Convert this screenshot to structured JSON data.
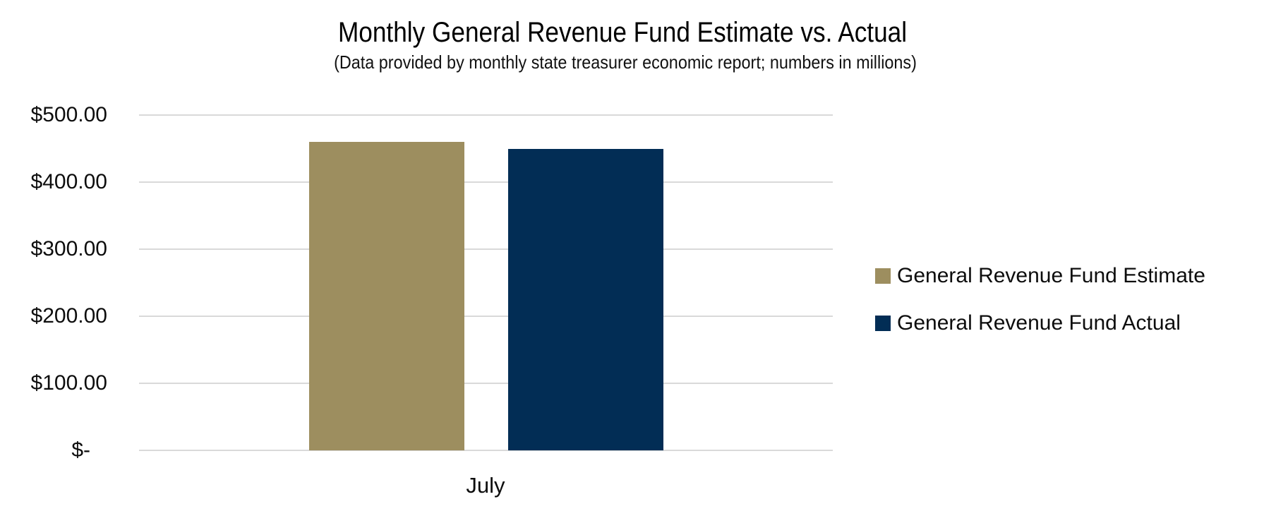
{
  "chart_data": {
    "type": "bar",
    "title": "Monthly General Revenue Fund Estimate vs. Actual",
    "subtitle": "(Data provided by monthly state treasurer economic report; numbers in millions)",
    "categories": [
      "July"
    ],
    "series": [
      {
        "name": "General Revenue Fund Estimate",
        "values": [
          460
        ],
        "color": "#9D8E5F"
      },
      {
        "name": "General Revenue Fund Actual",
        "values": [
          450
        ],
        "color": "#022D55"
      }
    ],
    "xlabel": "",
    "ylabel": "",
    "ylim": [
      0,
      500
    ],
    "y_ticks": [
      {
        "value": 500,
        "label": "$500.00"
      },
      {
        "value": 400,
        "label": "$400.00"
      },
      {
        "value": 300,
        "label": "$300.00"
      },
      {
        "value": 200,
        "label": "$200.00"
      },
      {
        "value": 100,
        "label": "$100.00"
      },
      {
        "value": 0,
        "label": "$-"
      }
    ],
    "grid": true,
    "legend_position": "right",
    "colors": {
      "gridline": "#D9D9D9",
      "text": "#0d0d0d",
      "background": "#FFFFFF"
    }
  }
}
